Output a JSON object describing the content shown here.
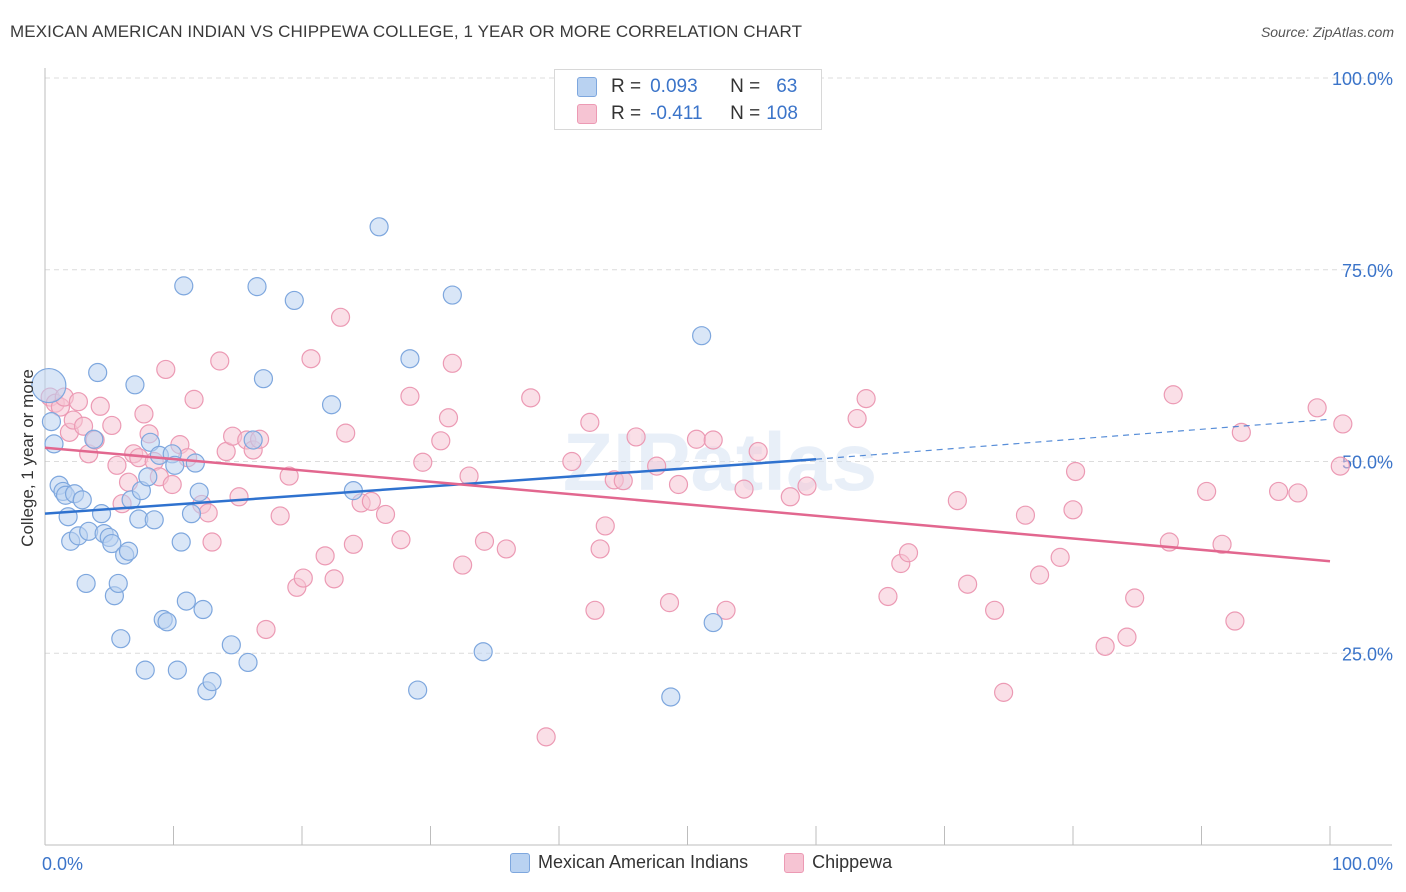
{
  "title": "MEXICAN AMERICAN INDIAN VS CHIPPEWA COLLEGE, 1 YEAR OR MORE CORRELATION CHART",
  "source": "Source: ZipAtlas.com",
  "colors": {
    "blue_fill": "#b9d2f1",
    "blue_stroke": "#7ea7de",
    "blue_line": "#2f72cf",
    "pink_fill": "#f6c4d3",
    "pink_stroke": "#ec9ab4",
    "pink_line": "#e2678f",
    "tick_text": "#3b74c9",
    "grid": "#dcdcdc"
  },
  "stats": {
    "r_label": "R =",
    "n_label": "N =",
    "blue": {
      "r": "0.093",
      "n": "63"
    },
    "pink": {
      "r": "-0.411",
      "n": "108"
    }
  },
  "chart_data": {
    "type": "scatter",
    "title": "MEXICAN AMERICAN INDIAN VS CHIPPEWA COLLEGE, 1 YEAR OR MORE CORRELATION CHART",
    "xlabel": "",
    "ylabel": "College, 1 year or more",
    "xlim": [
      0,
      100
    ],
    "ylim": [
      0,
      100
    ],
    "x_tick_labels": [
      "0.0%",
      "100.0%"
    ],
    "y_ticks": [
      25,
      50,
      75,
      100
    ],
    "y_tick_labels": [
      "25.0%",
      "50.0%",
      "75.0%",
      "100.0%"
    ],
    "grid": true,
    "watermark": "ZIPatlas",
    "series": [
      {
        "name": "Mexican American Indians",
        "color": "#7ea7de",
        "trend": {
          "x0": 0,
          "y0": 43.2,
          "x1": 60,
          "y1": 50.3,
          "dashed_to_x": 100,
          "dashed_to_y": 55.5
        },
        "points": [
          [
            0.3,
            59.9
          ],
          [
            0.5,
            55.2
          ],
          [
            0.7,
            52.3
          ],
          [
            1.1,
            46.9
          ],
          [
            1.4,
            46.1
          ],
          [
            1.6,
            45.6
          ],
          [
            1.8,
            42.8
          ],
          [
            2.0,
            39.6
          ],
          [
            2.3,
            45.8
          ],
          [
            2.6,
            40.3
          ],
          [
            2.9,
            45.0
          ],
          [
            3.2,
            34.1
          ],
          [
            3.4,
            40.9
          ],
          [
            3.8,
            52.9
          ],
          [
            4.1,
            61.6
          ],
          [
            4.4,
            43.2
          ],
          [
            4.6,
            40.6
          ],
          [
            5.0,
            40.1
          ],
          [
            5.2,
            39.3
          ],
          [
            5.4,
            32.5
          ],
          [
            5.7,
            34.1
          ],
          [
            5.9,
            26.9
          ],
          [
            6.2,
            37.8
          ],
          [
            6.5,
            38.3
          ],
          [
            6.7,
            45.0
          ],
          [
            7.0,
            60.0
          ],
          [
            7.3,
            42.5
          ],
          [
            7.5,
            46.2
          ],
          [
            7.8,
            22.8
          ],
          [
            8.0,
            48.0
          ],
          [
            8.2,
            52.5
          ],
          [
            8.5,
            42.4
          ],
          [
            8.9,
            50.8
          ],
          [
            9.2,
            29.4
          ],
          [
            9.5,
            29.1
          ],
          [
            9.9,
            51.0
          ],
          [
            10.1,
            49.5
          ],
          [
            10.3,
            22.8
          ],
          [
            10.6,
            39.5
          ],
          [
            10.8,
            72.9
          ],
          [
            11.0,
            31.8
          ],
          [
            11.4,
            43.2
          ],
          [
            11.7,
            49.8
          ],
          [
            12.0,
            46.0
          ],
          [
            12.3,
            30.7
          ],
          [
            12.6,
            20.1
          ],
          [
            13.0,
            21.3
          ],
          [
            14.5,
            26.1
          ],
          [
            15.8,
            23.8
          ],
          [
            16.2,
            52.8
          ],
          [
            16.5,
            72.8
          ],
          [
            17.0,
            60.8
          ],
          [
            19.4,
            71.0
          ],
          [
            22.3,
            57.4
          ],
          [
            24.0,
            46.2
          ],
          [
            26.0,
            80.6
          ],
          [
            28.4,
            63.4
          ],
          [
            29.0,
            20.2
          ],
          [
            31.7,
            71.7
          ],
          [
            34.1,
            25.2
          ],
          [
            48.7,
            19.3
          ],
          [
            51.1,
            66.4
          ],
          [
            52.0,
            29.0
          ]
        ]
      },
      {
        "name": "Chippewa",
        "color": "#ec9ab4",
        "trend": {
          "x0": 0,
          "y0": 51.8,
          "x1": 100,
          "y1": 37.0
        },
        "points": [
          [
            0.4,
            58.4
          ],
          [
            0.8,
            57.6
          ],
          [
            1.2,
            57.1
          ],
          [
            1.5,
            58.4
          ],
          [
            1.9,
            53.8
          ],
          [
            2.2,
            55.4
          ],
          [
            2.6,
            57.8
          ],
          [
            3.0,
            54.6
          ],
          [
            3.4,
            51.0
          ],
          [
            3.9,
            52.8
          ],
          [
            4.3,
            57.2
          ],
          [
            5.2,
            54.7
          ],
          [
            5.6,
            49.5
          ],
          [
            6.0,
            44.5
          ],
          [
            6.5,
            47.3
          ],
          [
            6.9,
            51.0
          ],
          [
            7.3,
            50.5
          ],
          [
            7.7,
            56.2
          ],
          [
            8.1,
            53.6
          ],
          [
            8.5,
            50.0
          ],
          [
            8.9,
            48.0
          ],
          [
            9.4,
            62.0
          ],
          [
            9.9,
            47.0
          ],
          [
            10.5,
            52.2
          ],
          [
            11.1,
            50.5
          ],
          [
            11.6,
            58.1
          ],
          [
            12.2,
            44.4
          ],
          [
            12.7,
            43.3
          ],
          [
            13.0,
            39.5
          ],
          [
            13.6,
            63.1
          ],
          [
            14.1,
            51.3
          ],
          [
            14.6,
            53.3
          ],
          [
            15.1,
            45.4
          ],
          [
            15.7,
            52.8
          ],
          [
            16.2,
            51.5
          ],
          [
            16.7,
            52.9
          ],
          [
            17.2,
            28.1
          ],
          [
            18.3,
            42.9
          ],
          [
            19.0,
            48.1
          ],
          [
            19.6,
            33.6
          ],
          [
            20.1,
            34.8
          ],
          [
            20.7,
            63.4
          ],
          [
            21.8,
            37.7
          ],
          [
            22.5,
            34.7
          ],
          [
            23.0,
            68.8
          ],
          [
            23.4,
            53.7
          ],
          [
            24.0,
            39.2
          ],
          [
            24.6,
            44.6
          ],
          [
            25.4,
            44.8
          ],
          [
            26.5,
            43.1
          ],
          [
            27.7,
            39.8
          ],
          [
            28.4,
            58.5
          ],
          [
            29.4,
            49.9
          ],
          [
            30.8,
            52.7
          ],
          [
            31.4,
            55.7
          ],
          [
            31.7,
            62.8
          ],
          [
            32.5,
            36.5
          ],
          [
            33.0,
            48.1
          ],
          [
            34.2,
            39.6
          ],
          [
            35.9,
            38.6
          ],
          [
            37.8,
            58.3
          ],
          [
            39.0,
            14.1
          ],
          [
            41.0,
            50.0
          ],
          [
            42.4,
            55.1
          ],
          [
            42.8,
            30.6
          ],
          [
            43.2,
            38.6
          ],
          [
            43.6,
            41.6
          ],
          [
            44.3,
            47.6
          ],
          [
            45.0,
            47.5
          ],
          [
            46.0,
            53.2
          ],
          [
            47.6,
            49.4
          ],
          [
            48.6,
            31.6
          ],
          [
            49.3,
            47.0
          ],
          [
            50.7,
            52.9
          ],
          [
            52.0,
            52.8
          ],
          [
            53.0,
            30.6
          ],
          [
            54.4,
            46.4
          ],
          [
            55.5,
            51.3
          ],
          [
            58.0,
            45.4
          ],
          [
            59.3,
            46.8
          ],
          [
            63.2,
            55.6
          ],
          [
            63.9,
            58.2
          ],
          [
            65.6,
            32.4
          ],
          [
            66.6,
            36.7
          ],
          [
            67.2,
            38.1
          ],
          [
            71.0,
            44.9
          ],
          [
            71.8,
            34.0
          ],
          [
            73.9,
            30.6
          ],
          [
            74.6,
            19.9
          ],
          [
            76.3,
            43.0
          ],
          [
            77.4,
            35.2
          ],
          [
            79.0,
            37.5
          ],
          [
            80.0,
            43.7
          ],
          [
            80.2,
            48.7
          ],
          [
            82.5,
            25.9
          ],
          [
            84.2,
            27.1
          ],
          [
            84.8,
            32.2
          ],
          [
            87.5,
            39.5
          ],
          [
            87.8,
            58.7
          ],
          [
            90.4,
            46.1
          ],
          [
            91.6,
            39.2
          ],
          [
            92.6,
            29.2
          ],
          [
            93.1,
            53.8
          ],
          [
            96.0,
            46.1
          ],
          [
            97.5,
            45.9
          ],
          [
            99.0,
            57.0
          ],
          [
            100.8,
            49.4
          ],
          [
            101.0,
            54.9
          ]
        ]
      }
    ]
  }
}
